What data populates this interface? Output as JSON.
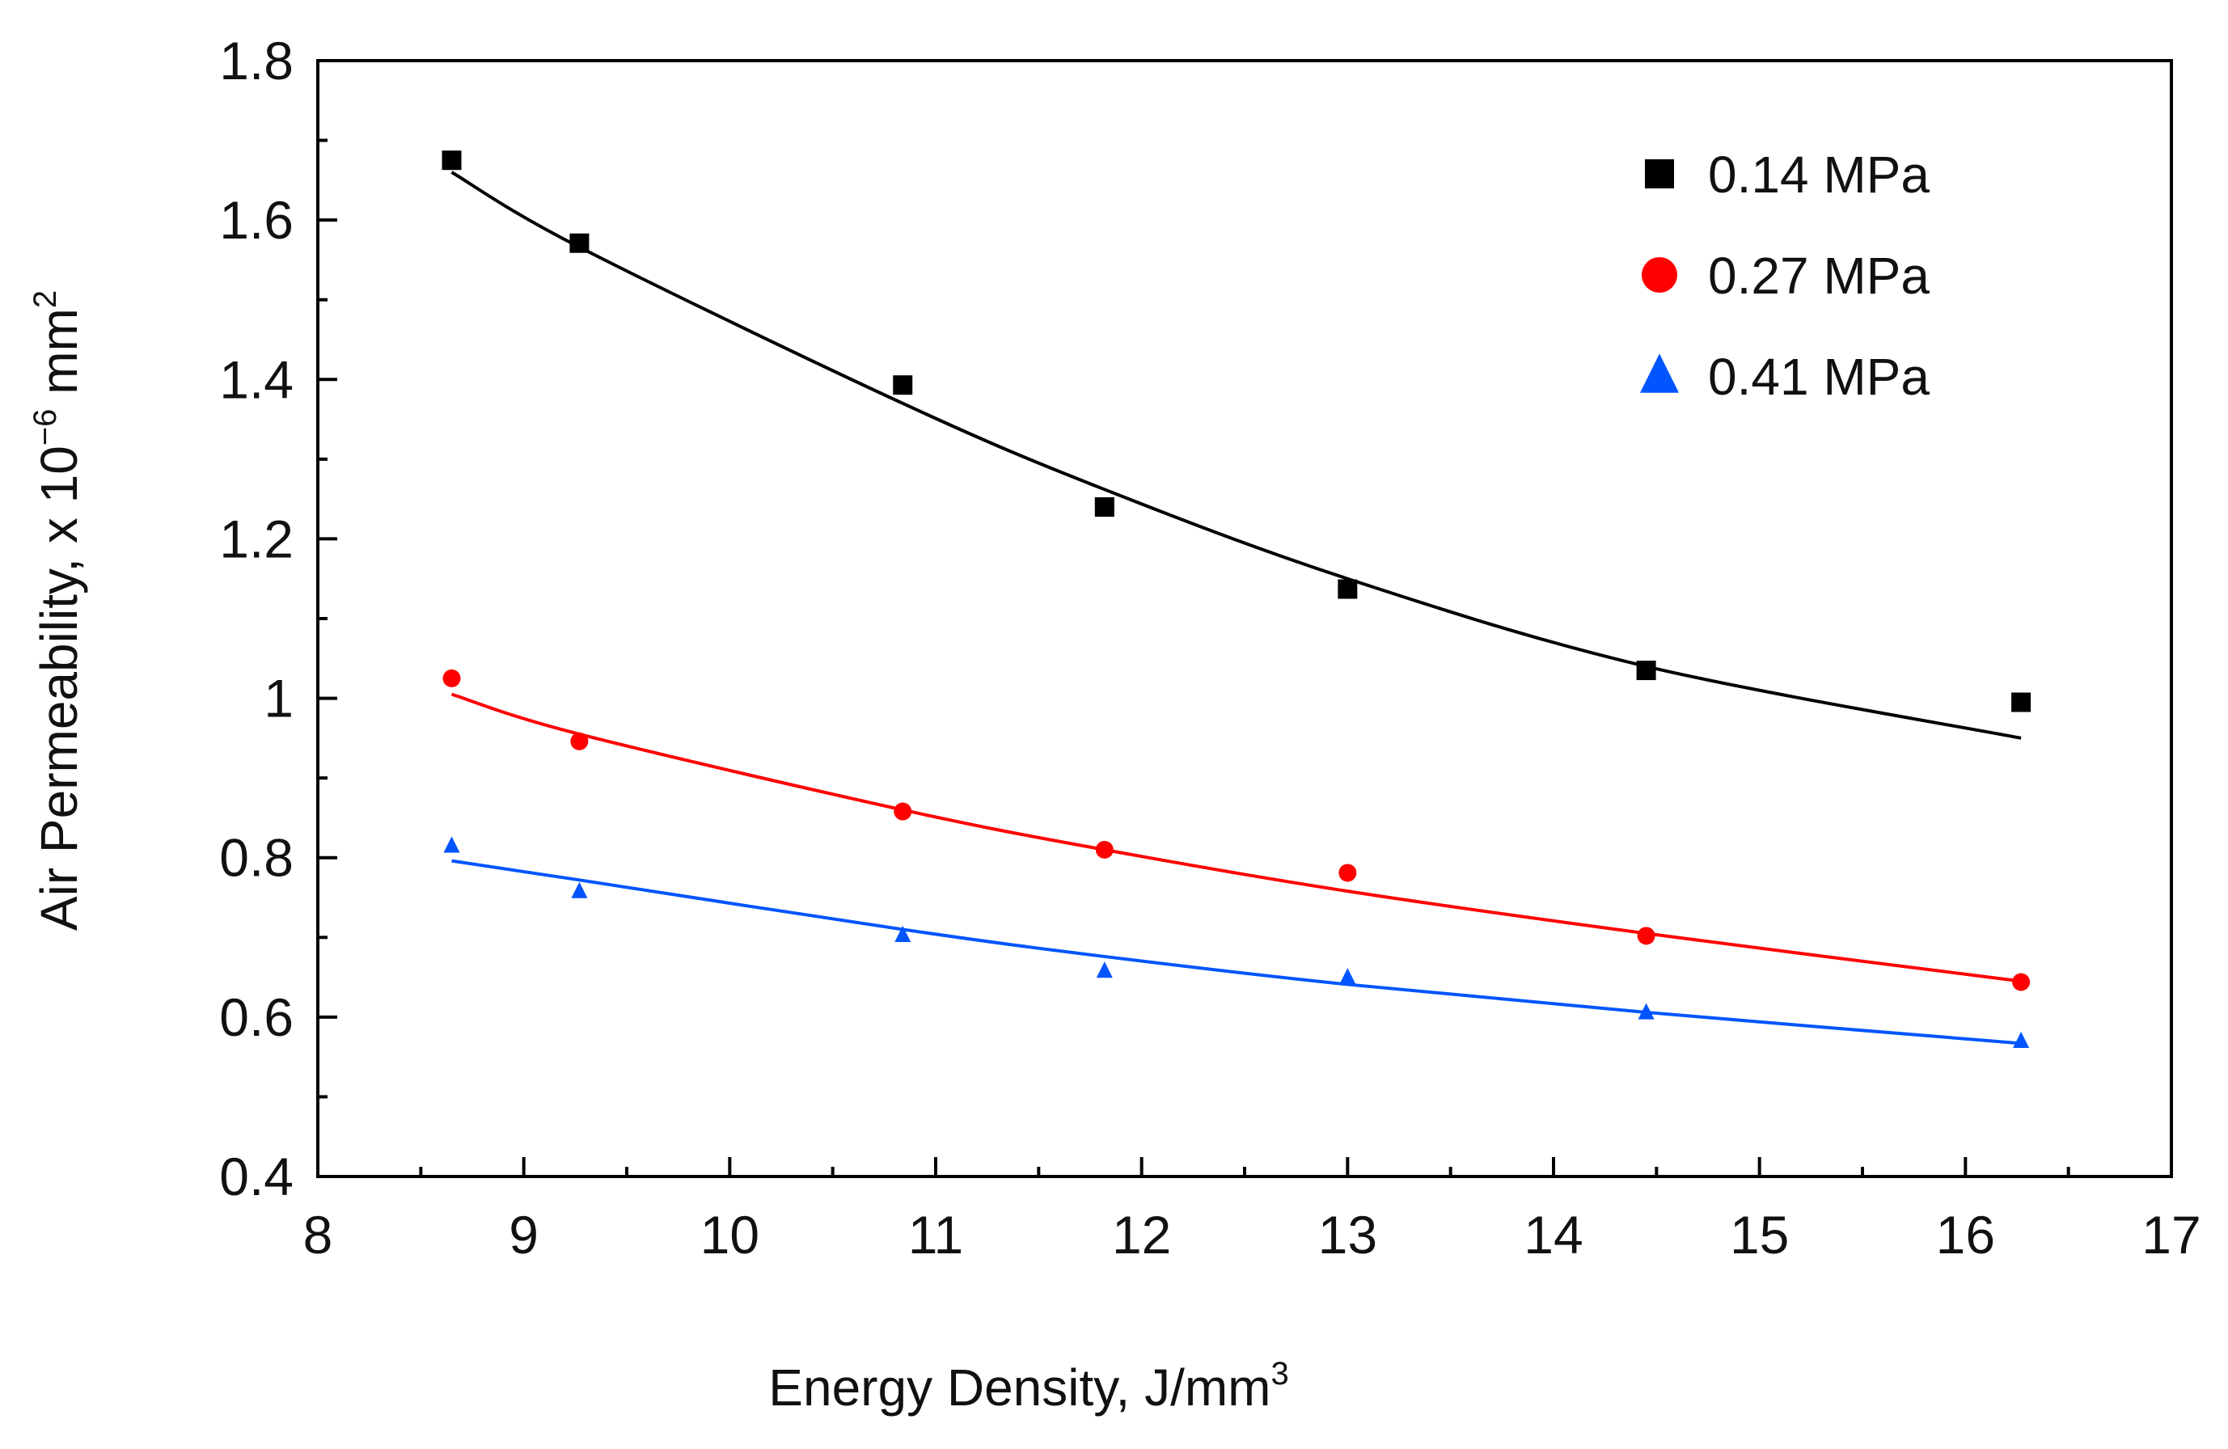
{
  "chart_data": {
    "type": "scatter",
    "title": "",
    "xlabel": {
      "main": "Energy Density, J/mm",
      "sup": "3"
    },
    "ylabel": {
      "main": "Air Permeability, x 10",
      "exp": "−6",
      "unit": " mm",
      "sup": "2"
    },
    "xlim": [
      8,
      17
    ],
    "ylim": [
      0.4,
      1.8
    ],
    "x_major_ticks": [
      8,
      9,
      10,
      11,
      12,
      13,
      14,
      15,
      16,
      17
    ],
    "x_tick_labels": [
      "8",
      "9",
      "10",
      "11",
      "12",
      "13",
      "14",
      "15",
      "16",
      "17"
    ],
    "y_major_ticks": [
      0.4,
      0.6,
      0.8,
      1.0,
      1.2,
      1.4,
      1.6,
      1.8
    ],
    "y_tick_labels": [
      "0.4",
      "0.6",
      "0.8",
      "1",
      "1.2",
      "1.4",
      "1.6",
      "1.8"
    ],
    "grid": false,
    "legend_position": "top-right",
    "series": [
      {
        "name": "0.14 MPa",
        "marker": "square",
        "color": "#000000",
        "x": [
          8.65,
          9.27,
          10.84,
          11.82,
          13.0,
          14.45,
          16.27
        ],
        "y": [
          1.675,
          1.571,
          1.393,
          1.24,
          1.137,
          1.035,
          0.995
        ],
        "trend": [
          [
            8.65,
            1.66
          ],
          [
            9.27,
            1.566
          ],
          [
            10.84,
            1.37
          ],
          [
            11.82,
            1.262
          ],
          [
            13.0,
            1.15
          ],
          [
            14.45,
            1.04
          ],
          [
            16.27,
            0.95
          ]
        ]
      },
      {
        "name": "0.27 MPa",
        "marker": "circle",
        "color": "#ff0000",
        "x": [
          8.65,
          9.27,
          10.84,
          11.82,
          13.0,
          14.45,
          16.27
        ],
        "y": [
          1.025,
          0.946,
          0.858,
          0.81,
          0.781,
          0.702,
          0.644
        ],
        "trend": [
          [
            8.65,
            1.005
          ],
          [
            9.27,
            0.955
          ],
          [
            10.84,
            0.86
          ],
          [
            11.82,
            0.81
          ],
          [
            13.0,
            0.758
          ],
          [
            14.45,
            0.705
          ],
          [
            16.27,
            0.645
          ]
        ]
      },
      {
        "name": "0.41 MPa",
        "marker": "triangle",
        "color": "#0055ff",
        "x": [
          8.65,
          9.27,
          10.84,
          11.82,
          13.0,
          14.45,
          16.27
        ],
        "y": [
          0.815,
          0.758,
          0.703,
          0.658,
          0.65,
          0.606,
          0.57
        ],
        "trend": [
          [
            8.65,
            0.796
          ],
          [
            9.27,
            0.772
          ],
          [
            10.84,
            0.71
          ],
          [
            11.82,
            0.676
          ],
          [
            13.0,
            0.641
          ],
          [
            14.45,
            0.606
          ],
          [
            16.27,
            0.567
          ]
        ]
      }
    ]
  }
}
